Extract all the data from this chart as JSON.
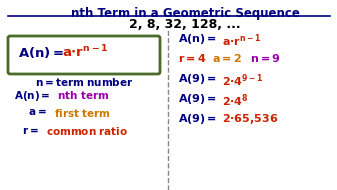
{
  "title": "nth Term in a Geometric Sequence",
  "subtitle": "2, 8, 32, 128, ...",
  "bg_color": "#ffffff",
  "navy": "#000080",
  "red": "#cc2200",
  "purple": "#9900aa",
  "orange": "#cc7700",
  "green_box": "#4a6b2a",
  "gray": "#888888",
  "black": "#000000"
}
